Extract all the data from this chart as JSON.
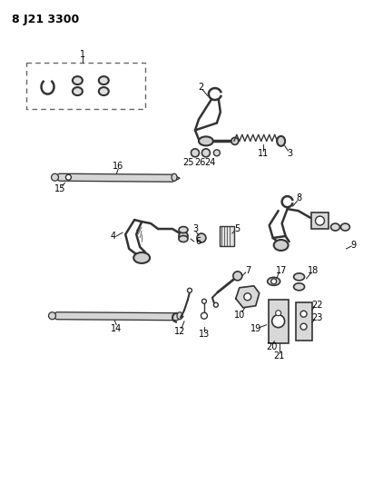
{
  "title": "8 J21 3300",
  "bg": "#ffffff",
  "lc": "#333333",
  "tc": "#000000",
  "fw": 4.11,
  "fh": 5.33,
  "dpi": 100
}
